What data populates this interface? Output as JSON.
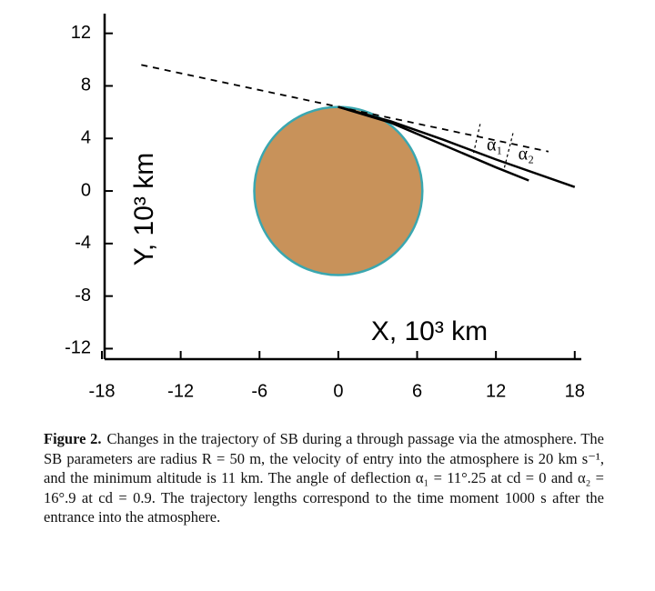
{
  "chart_data": {
    "type": "line",
    "xlabel": "X, 10³ km",
    "ylabel": "Y, 10³ km",
    "xlim": [
      -18,
      18.5
    ],
    "ylim": [
      -12.8,
      13.5
    ],
    "xticks": [
      -18,
      -12,
      -6,
      0,
      6,
      12,
      18
    ],
    "yticks": [
      -12,
      -8,
      -4,
      0,
      4,
      8,
      12
    ],
    "planet": {
      "center": [
        0,
        0
      ],
      "radius": 6.4,
      "color": "#c8925a",
      "edge_color": "#3aa7b0"
    },
    "tangent": {
      "x": [
        -15,
        16
      ],
      "y": [
        9.6,
        3.0
      ],
      "color": "#000000"
    },
    "series": [
      {
        "color": "#000000",
        "x": [
          0,
          4,
          8,
          12,
          18
        ],
        "y": [
          6.4,
          5.3,
          3.9,
          2.4,
          0.3
        ]
      },
      {
        "color": "#000000",
        "x": [
          0,
          4,
          8,
          12,
          14.5
        ],
        "y": [
          6.4,
          5.2,
          3.5,
          1.8,
          0.8
        ]
      }
    ],
    "annotations": [
      "α₁",
      "α₂"
    ]
  },
  "caption": {
    "label": "Figure 2.",
    "text": "Changes in the trajectory of SB during a through passage via the atmosphere. The SB parameters are radius R = 50 m, the velocity of entry into the atmosphere is 20 km s⁻¹, and the minimum altitude is 11 km. The angle of deflection α₁ = 11°.25 at cd = 0 and α₂ = 16°.9 at cd = 0.9. The trajectory lengths correspond to the time moment 1000 s after the entrance into the atmosphere."
  }
}
